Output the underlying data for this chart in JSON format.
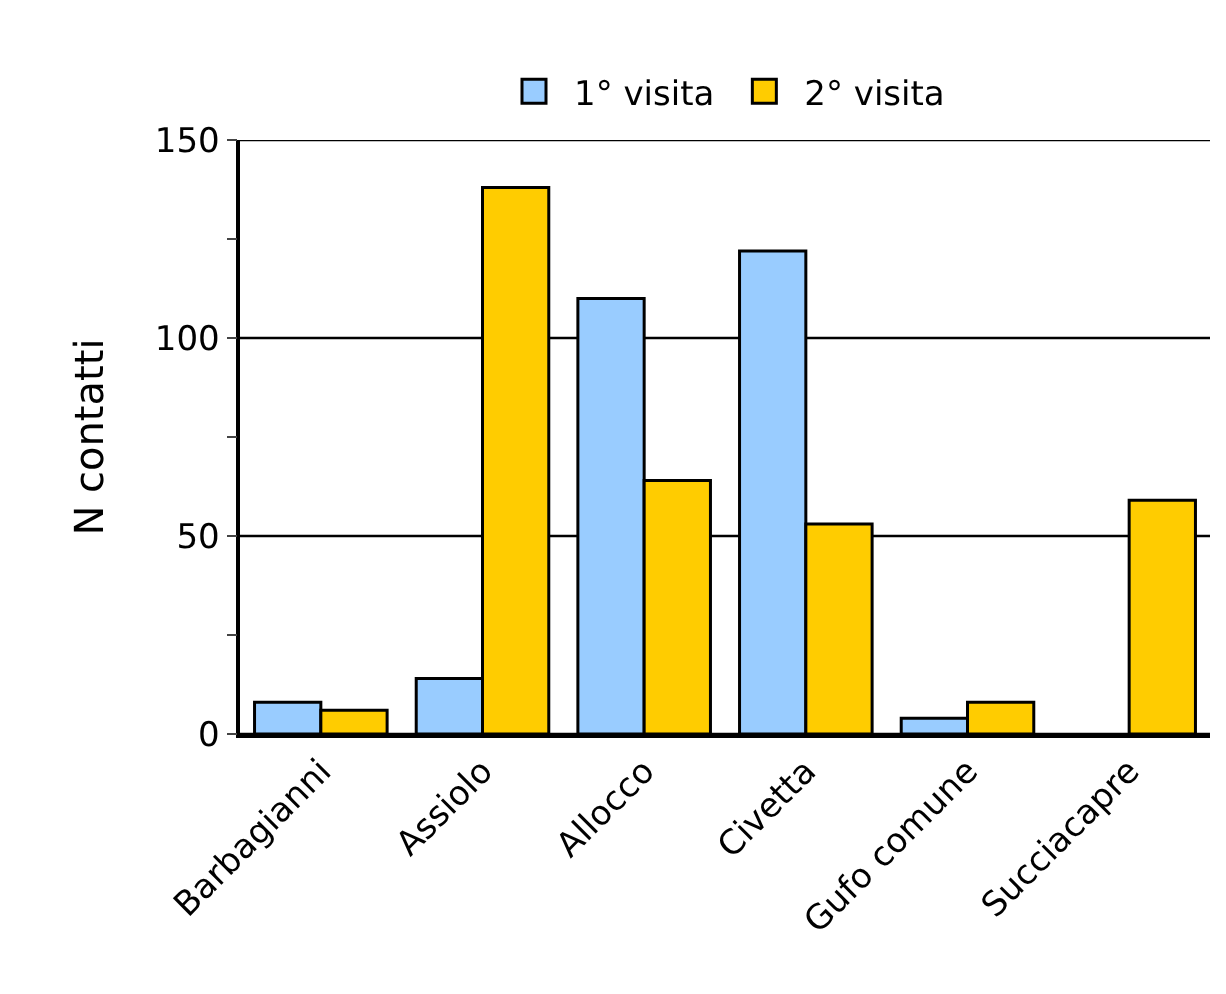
{
  "chart_data": {
    "type": "bar",
    "ylabel": "N contatti",
    "categories": [
      "Barbagianni",
      "Assiolo",
      "Allocco",
      "Civetta",
      "Gufo comune",
      "Succiacapre"
    ],
    "series": [
      {
        "name": "1° visita",
        "color": "#99ccff",
        "values": [
          8,
          14,
          110,
          122,
          4,
          null
        ]
      },
      {
        "name": "2° visita",
        "color": "#ffcc00",
        "values": [
          6,
          138,
          64,
          53,
          8,
          59
        ]
      }
    ],
    "ylim": [
      0,
      150
    ],
    "yticks": [
      0,
      {
        "value": 25,
        "label": null
      },
      50,
      {
        "value": 75,
        "label": null
      },
      100,
      {
        "value": 125,
        "label": null
      },
      150
    ],
    "grid": "y",
    "legend": "top"
  }
}
